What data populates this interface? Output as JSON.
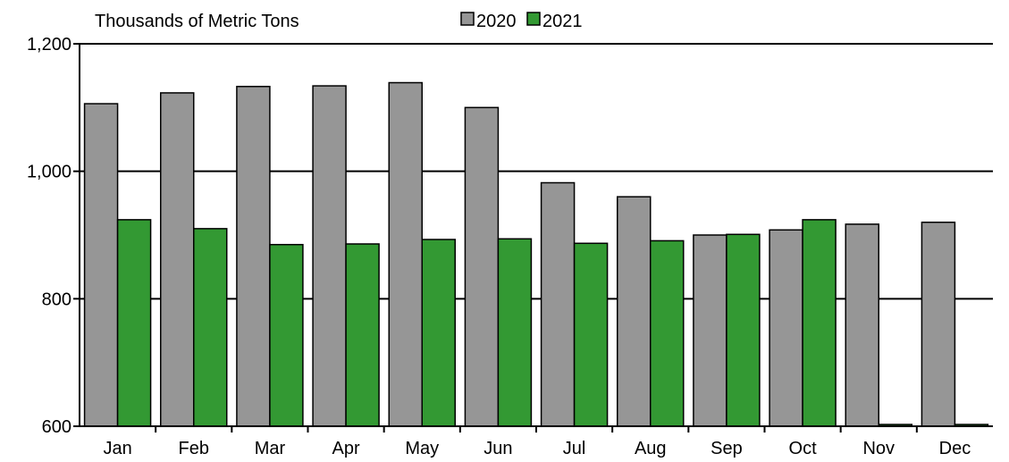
{
  "chart_data": {
    "type": "bar",
    "ylabel": "Thousands of Metric Tons",
    "categories": [
      "Jan",
      "Feb",
      "Mar",
      "Apr",
      "May",
      "Jun",
      "Jul",
      "Aug",
      "Sep",
      "Oct",
      "Nov",
      "Dec"
    ],
    "series": [
      {
        "name": "2020",
        "color": "#969696",
        "values": [
          1106,
          1123,
          1133,
          1134,
          1139,
          1100,
          982,
          960,
          900,
          908,
          917,
          920
        ]
      },
      {
        "name": "2021",
        "color": "#339933",
        "values": [
          924,
          910,
          885,
          886,
          893,
          894,
          887,
          891,
          901,
          924,
          null,
          null
        ]
      }
    ],
    "ylim": [
      600,
      1200
    ],
    "yticks": [
      600,
      800,
      1000,
      1200
    ],
    "ytick_labels": [
      "600",
      "800",
      "1,000",
      "1,200"
    ],
    "grid": "horizontal",
    "legend_position": "top"
  }
}
